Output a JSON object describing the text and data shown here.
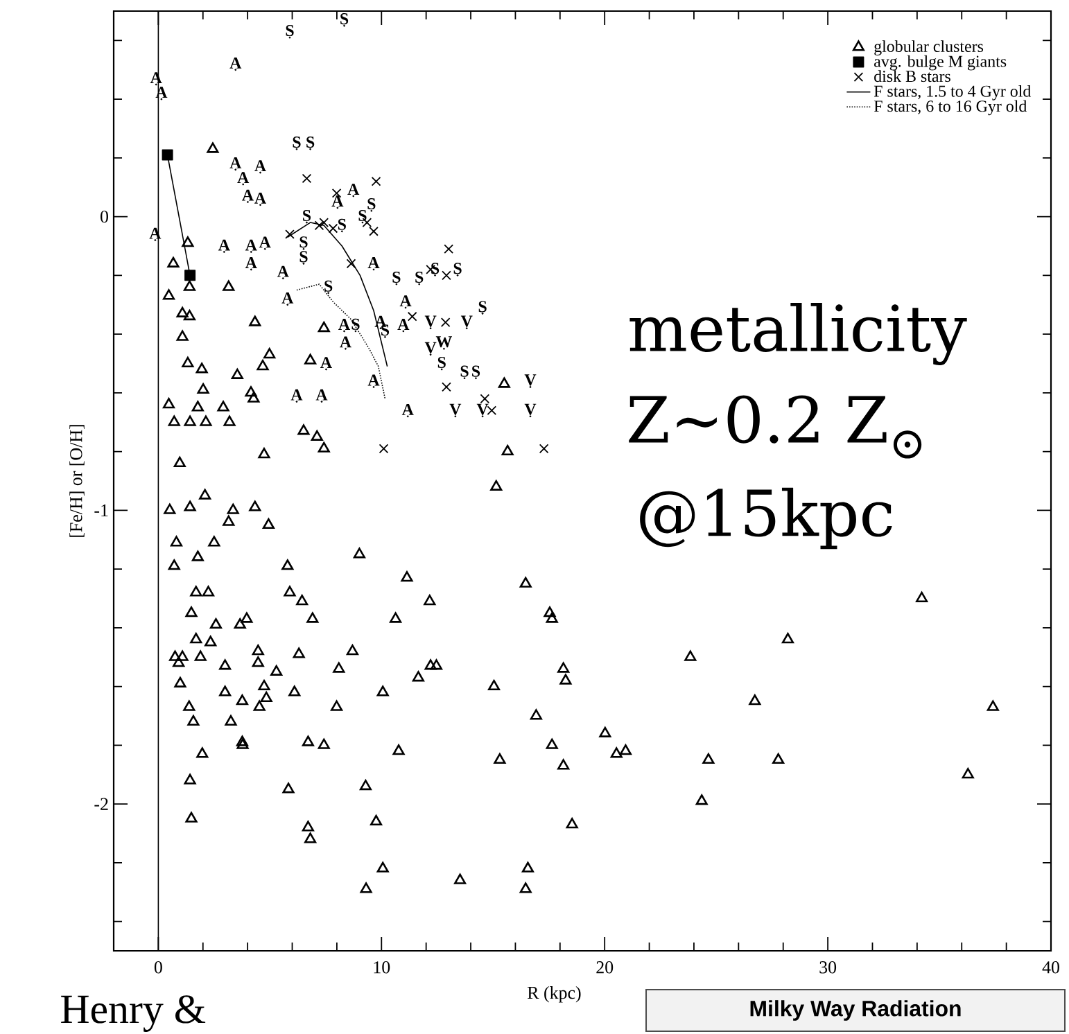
{
  "chart_data": {
    "type": "scatter",
    "xlabel": "R (kpc)",
    "ylabel": "[Fe/H] or [O/H]",
    "xlim": [
      -2,
      40
    ],
    "ylim": [
      -2.5,
      0.7
    ],
    "xticks": [
      0,
      {
        "value": 2,
        "label": null
      },
      {
        "value": 4,
        "label": null
      },
      {
        "value": 6,
        "label": null
      },
      {
        "value": 8,
        "label": null
      },
      10,
      {
        "value": 12,
        "label": null
      },
      {
        "value": 14,
        "label": null
      },
      {
        "value": 16,
        "label": null
      },
      {
        "value": 18,
        "label": null
      },
      20,
      {
        "value": 22,
        "label": null
      },
      {
        "value": 24,
        "label": null
      },
      {
        "value": 26,
        "label": null
      },
      {
        "value": 28,
        "label": null
      },
      30,
      {
        "value": 32,
        "label": null
      },
      {
        "value": 34,
        "label": null
      },
      {
        "value": 36,
        "label": null
      },
      {
        "value": 38,
        "label": null
      },
      40
    ],
    "yticks": [
      -2,
      {
        "value": -2.4,
        "label": null
      },
      {
        "value": -2.2,
        "label": null
      },
      {
        "value": -1.8,
        "label": null
      },
      {
        "value": -1.6,
        "label": null
      },
      {
        "value": -1.4,
        "label": null
      },
      {
        "value": -1.2,
        "label": null
      },
      -1,
      {
        "value": -0.8,
        "label": null
      },
      {
        "value": -0.6,
        "label": null
      },
      {
        "value": -0.4,
        "label": null
      },
      {
        "value": -0.2,
        "label": null
      },
      0,
      {
        "value": 0.2,
        "label": null
      },
      {
        "value": 0.4,
        "label": null
      },
      {
        "value": 0.6,
        "label": null
      }
    ],
    "legend": "top right",
    "ref_lines": [
      {
        "axis": "x",
        "value": 0,
        "color": "#000000"
      }
    ],
    "annotations": [
      "metallicity",
      "Z~0.2 Z$_{⊙}$",
      "@15kpc",
      "Henry &",
      "Milky Way Radiation"
    ],
    "series": [
      {
        "name": "globular clusters",
        "color": "#000000",
        "marker": "triangle",
        "x": [
          2.44,
          1.32,
          0.67,
          1.4,
          0.47,
          3.15,
          1.08,
          1.4,
          1.08,
          4.33,
          7.42,
          1.32,
          1.95,
          2.01,
          4.98,
          4.68,
          6.81,
          3.54,
          4.15,
          4.27,
          0.47,
          0.71,
          1.42,
          1.77,
          2.13,
          2.91,
          3.19,
          6.51,
          7.11,
          7.42,
          4.74,
          0.96,
          15.5,
          15.65,
          15.14,
          0.51,
          1.42,
          2.09,
          3.35,
          3.15,
          4.33,
          4.94,
          0.81,
          2.5,
          1.77,
          0.71,
          5.79,
          9.01,
          11.14,
          16.46,
          1.69,
          2.24,
          5.89,
          6.44,
          12.16,
          1.48,
          3.96,
          3.66,
          6.91,
          10.63,
          17.54,
          17.64,
          2.58,
          1.69,
          2.34,
          0.75,
          1.08,
          0.91,
          1.89,
          2.99,
          4.47,
          4.47,
          6.3,
          5.29,
          8.7,
          8.09,
          11.65,
          12.2,
          12.46,
          15.04,
          18.15,
          18.25,
          0.98,
          2.99,
          4.74,
          4.84,
          4.53,
          6.1,
          3.76,
          10.06,
          7.99,
          1.38,
          1.57,
          16.93,
          3.25,
          3.76,
          3.78,
          6.71,
          7.42,
          10.77,
          1.97,
          15.3,
          17.64,
          18.15,
          20.02,
          1.42,
          5.83,
          9.29,
          1.48,
          9.76,
          18.54,
          6.71,
          6.81,
          10.06,
          9.31,
          13.52,
          16.56,
          16.46,
          34.21,
          28.21,
          23.84,
          26.73,
          37.4,
          20.53,
          20.94,
          24.65,
          27.78,
          36.28,
          24.35
        ],
        "values": [
          0.23,
          -0.09,
          -0.16,
          -0.24,
          -0.27,
          -0.24,
          -0.33,
          -0.34,
          -0.41,
          -0.36,
          -0.38,
          -0.5,
          -0.52,
          -0.59,
          -0.47,
          -0.51,
          -0.49,
          -0.54,
          -0.6,
          -0.62,
          -0.64,
          -0.7,
          -0.7,
          -0.65,
          -0.7,
          -0.65,
          -0.7,
          -0.73,
          -0.75,
          -0.79,
          -0.81,
          -0.84,
          -0.57,
          -0.8,
          -0.92,
          -1.0,
          -0.99,
          -0.95,
          -1.0,
          -1.04,
          -0.99,
          -1.05,
          -1.11,
          -1.11,
          -1.16,
          -1.19,
          -1.19,
          -1.15,
          -1.23,
          -1.25,
          -1.28,
          -1.28,
          -1.28,
          -1.31,
          -1.31,
          -1.35,
          -1.37,
          -1.39,
          -1.37,
          -1.37,
          -1.35,
          -1.37,
          -1.39,
          -1.44,
          -1.45,
          -1.5,
          -1.5,
          -1.52,
          -1.5,
          -1.53,
          -1.48,
          -1.52,
          -1.49,
          -1.55,
          -1.48,
          -1.54,
          -1.57,
          -1.53,
          -1.53,
          -1.6,
          -1.54,
          -1.58,
          -1.59,
          -1.62,
          -1.6,
          -1.64,
          -1.67,
          -1.62,
          -1.65,
          -1.62,
          -1.67,
          -1.67,
          -1.72,
          -1.7,
          -1.72,
          -1.79,
          -1.8,
          -1.79,
          -1.8,
          -1.82,
          -1.83,
          -1.85,
          -1.8,
          -1.87,
          -1.76,
          -1.92,
          -1.95,
          -1.94,
          -2.05,
          -2.06,
          -2.07,
          -2.08,
          -2.12,
          -2.22,
          -2.29,
          -2.26,
          -2.22,
          -2.29,
          -1.3,
          -1.44,
          -1.5,
          -1.65,
          -1.67,
          -1.83,
          -1.82,
          -1.85,
          -1.85,
          -1.9,
          -1.99
        ]
      },
      {
        "name": "avg. bulge M giants",
        "color": "#000000",
        "type": "line",
        "line_style": "solid",
        "marker": "square",
        "x": [
          0.41,
          1.42
        ],
        "values": [
          0.21,
          -0.2
        ]
      },
      {
        "name": "disk B stars",
        "color": "#000000",
        "marker": "cross",
        "x": [
          6.65,
          7.99,
          9.76,
          5.89,
          7.42,
          7.83,
          9.65,
          8.64,
          13.01,
          12.2,
          12.91,
          11.38,
          12.87,
          12.91,
          14.63,
          14.94,
          10.1,
          17.28,
          9.35,
          7.21
        ],
        "values": [
          0.13,
          0.08,
          0.12,
          -0.06,
          -0.02,
          -0.04,
          -0.05,
          -0.16,
          -0.11,
          -0.18,
          -0.2,
          -0.34,
          -0.36,
          -0.58,
          -0.62,
          -0.66,
          -0.79,
          -0.79,
          -0.02,
          -0.03
        ]
      },
      {
        "name": "F stars, 1.5 to 4 Gyr old",
        "color": "#000000",
        "type": "line",
        "line_style": "solid",
        "marker": "none",
        "x": [
          5.79,
          6.81,
          7.42,
          8.23,
          9.04,
          9.65,
          10.26
        ],
        "values": [
          -0.07,
          -0.02,
          -0.03,
          -0.1,
          -0.2,
          -0.32,
          -0.51
        ]
      },
      {
        "name": "F stars, 6 to 16 Gyr old",
        "color": "#000000",
        "type": "line",
        "line_style": "dotted",
        "marker": "none",
        "x": [
          6.2,
          7.21,
          7.83,
          8.64,
          9.45,
          9.86,
          10.16
        ],
        "values": [
          -0.25,
          -0.23,
          -0.29,
          -0.35,
          -0.45,
          -0.51,
          -0.62
        ]
      },
      {
        "name": "A",
        "color": "#000000",
        "marker": "none",
        "x": [
          3.46,
          -0.1,
          0.14,
          -0.14,
          3.46,
          3.8,
          4.57,
          4.01,
          4.57,
          2.95,
          4.16,
          4.78,
          4.16,
          5.59,
          5.79,
          8.74,
          8.03,
          9.65,
          8.33,
          8.39,
          7.52,
          6.2,
          7.32,
          9.65,
          9.96,
          11.08,
          10.98,
          11.18
        ],
        "values": [
          0.5,
          0.45,
          0.4,
          -0.08,
          0.16,
          0.11,
          0.15,
          0.05,
          0.04,
          -0.12,
          -0.12,
          -0.11,
          -0.18,
          -0.21,
          -0.3,
          0.07,
          0.03,
          -0.18,
          -0.39,
          -0.45,
          -0.52,
          -0.63,
          -0.63,
          -0.58,
          -0.38,
          -0.31,
          -0.39,
          -0.68
        ]
      },
      {
        "name": "S",
        "color": "#000000",
        "marker": "none",
        "x": [
          8.33,
          5.89,
          6.2,
          6.81,
          9.15,
          9.55,
          6.51,
          6.51,
          7.62,
          8.23,
          10.67,
          11.69,
          12.4,
          13.41,
          8.84,
          10.16,
          14.53,
          12.7,
          13.72,
          14.23,
          6.65
        ],
        "values": [
          0.65,
          0.61,
          0.23,
          0.23,
          -0.02,
          0.02,
          -0.11,
          -0.16,
          -0.26,
          -0.05,
          -0.23,
          -0.23,
          -0.2,
          -0.2,
          -0.39,
          -0.41,
          -0.33,
          -0.52,
          -0.55,
          -0.55,
          -0.02
        ]
      },
      {
        "name": "V",
        "color": "#000000",
        "marker": "none",
        "x": [
          12.2,
          13.82,
          12.2,
          13.31,
          14.53,
          16.67,
          16.67
        ],
        "values": [
          -0.38,
          -0.38,
          -0.47,
          -0.68,
          -0.68,
          -0.58,
          -0.68
        ]
      },
      {
        "name": "W",
        "color": "#000000",
        "marker": "none",
        "x": [
          12.8
        ],
        "values": [
          -0.45
        ]
      }
    ]
  }
}
